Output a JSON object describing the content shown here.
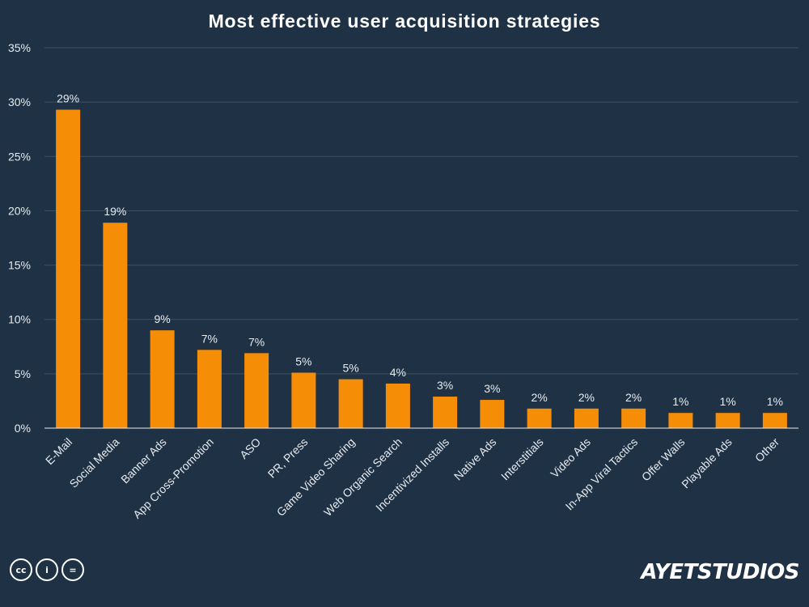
{
  "colors": {
    "background": "#1f3144",
    "bar": "#f68d07",
    "grid": "#3c5166",
    "text": "#e6ebf0"
  },
  "chart_data": {
    "type": "bar",
    "title": "Most effective user acquisition strategies",
    "xlabel": "",
    "ylabel": "",
    "categories": [
      "E-Mail",
      "Social Media",
      "Banner Ads",
      "App Cross-Promotion",
      "ASO",
      "PR, Press",
      "Game Video Sharing",
      "Web Organic Search",
      "Incentivized Installs",
      "Native Ads",
      "Interstitials",
      "Video Ads",
      "In-App Viral Tactics",
      "Offer Walls",
      "Playable Ads",
      "Other"
    ],
    "values": [
      29.3,
      18.9,
      9.0,
      7.2,
      6.9,
      5.1,
      4.5,
      4.1,
      2.9,
      2.6,
      1.8,
      1.8,
      1.8,
      1.4,
      1.4,
      1.4
    ],
    "data_labels": [
      "29%",
      "19%",
      "9%",
      "7%",
      "7%",
      "5%",
      "5%",
      "4%",
      "3%",
      "3%",
      "2%",
      "2%",
      "2%",
      "1%",
      "1%",
      "1%"
    ],
    "ylim": [
      0,
      35
    ],
    "yticks": [
      0,
      5,
      10,
      15,
      20,
      25,
      30,
      35
    ],
    "ytick_labels": [
      "0%",
      "5%",
      "10%",
      "15%",
      "20%",
      "25%",
      "30%",
      "35%"
    ],
    "grid": true,
    "legend": "none"
  },
  "footer": {
    "license_icons": [
      "cc-icon",
      "by-icon",
      "nd-icon"
    ],
    "license_glyphs": [
      "cc",
      "i",
      "="
    ],
    "brand": "AYETSTUDIOS"
  }
}
